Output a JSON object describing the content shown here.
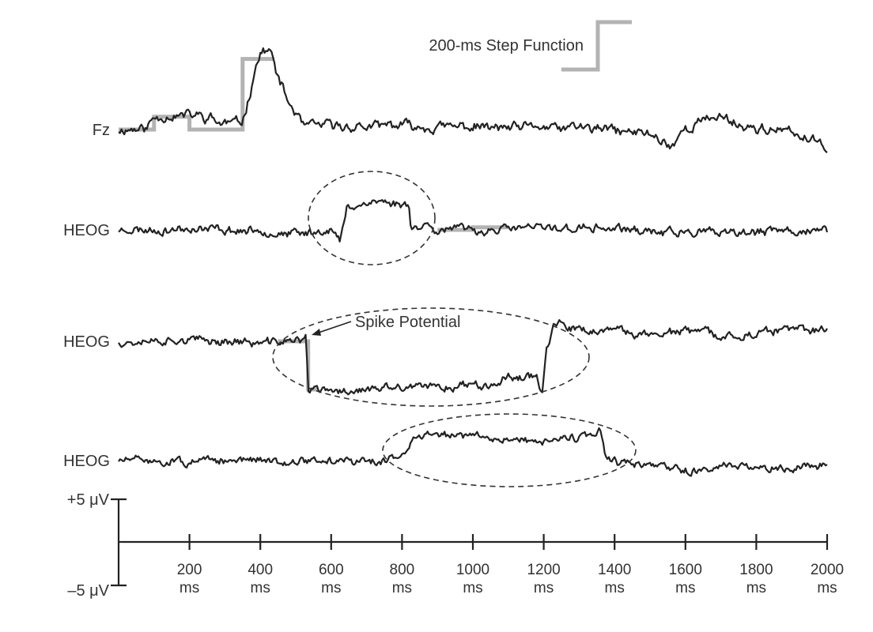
{
  "chart_data": {
    "type": "line",
    "x_unit": "ms",
    "xlim": [
      0,
      2000
    ],
    "x_ticks": [
      {
        "value": 200,
        "label": "200",
        "unit": "ms"
      },
      {
        "value": 400,
        "label": "400",
        "unit": "ms"
      },
      {
        "value": 600,
        "label": "600",
        "unit": "ms"
      },
      {
        "value": 800,
        "label": "800",
        "unit": "ms"
      },
      {
        "value": 1000,
        "label": "1000",
        "unit": "ms"
      },
      {
        "value": 1200,
        "label": "1200",
        "unit": "ms"
      },
      {
        "value": 1400,
        "label": "1400",
        "unit": "ms"
      },
      {
        "value": 1600,
        "label": "1600",
        "unit": "ms"
      },
      {
        "value": 1800,
        "label": "1800",
        "unit": "ms"
      },
      {
        "value": 2000,
        "label": "2000",
        "unit": "ms"
      }
    ],
    "y_scale": {
      "top_label": "+5 μV",
      "bottom_label": "–5 μV",
      "ylim": [
        -5,
        5
      ]
    },
    "step_legend_label": "200-ms Step Function",
    "annotation": {
      "text": "Spike Potential",
      "x": 530
    },
    "series": [
      {
        "name": "Fz",
        "line_color": "#222222",
        "step_color": "#b3b3b3",
        "noise_amp": 0.7,
        "seed": 11,
        "baseline_key": [
          [
            0,
            0
          ],
          [
            80,
            0.3
          ],
          [
            100,
            1.5
          ],
          [
            200,
            1.8
          ],
          [
            260,
            1.5
          ],
          [
            290,
            0.8
          ],
          [
            350,
            1.0
          ],
          [
            370,
            4.0
          ],
          [
            385,
            7.5
          ],
          [
            410,
            9.5
          ],
          [
            430,
            9.0
          ],
          [
            450,
            6.0
          ],
          [
            480,
            3.0
          ],
          [
            520,
            0.5
          ],
          [
            700,
            0.3
          ],
          [
            900,
            0.5
          ],
          [
            1100,
            0.0
          ],
          [
            1300,
            0.2
          ],
          [
            1500,
            -0.5
          ],
          [
            1560,
            -2.0
          ],
          [
            1600,
            0.0
          ],
          [
            1640,
            1.0
          ],
          [
            1700,
            1.5
          ],
          [
            1760,
            0.5
          ],
          [
            1900,
            -0.5
          ],
          [
            2000,
            -1.8
          ]
        ],
        "step": [
          [
            0,
            0
          ],
          [
            100,
            0
          ],
          [
            100,
            1.5
          ],
          [
            200,
            1.5
          ],
          [
            200,
            0
          ],
          [
            350,
            0
          ],
          [
            350,
            8.2
          ],
          [
            440,
            8.2
          ]
        ]
      },
      {
        "name": "HEOG",
        "line_color": "#222222",
        "step_color": "#b3b3b3",
        "noise_amp": 0.6,
        "seed": 23,
        "baseline_key": [
          [
            0,
            0
          ],
          [
            200,
            0
          ],
          [
            500,
            -0.3
          ],
          [
            600,
            0
          ],
          [
            625,
            -1.5
          ],
          [
            645,
            2.6
          ],
          [
            700,
            3.3
          ],
          [
            800,
            3.0
          ],
          [
            822,
            3.2
          ],
          [
            825,
            0.3
          ],
          [
            880,
            0.7
          ],
          [
            900,
            0
          ],
          [
            1200,
            0.2
          ],
          [
            1500,
            0
          ],
          [
            1700,
            -0.5
          ],
          [
            2000,
            0
          ]
        ],
        "step": [
          [
            900,
            0
          ],
          [
            1000,
            0
          ],
          [
            1000,
            0.3
          ],
          [
            1100,
            0.3
          ]
        ]
      },
      {
        "name": "HEOG",
        "line_color": "#222222",
        "step_color": "#b3b3b3",
        "noise_amp": 0.6,
        "seed": 37,
        "baseline_key": [
          [
            0,
            0
          ],
          [
            300,
            0
          ],
          [
            400,
            -0.2
          ],
          [
            500,
            0.1
          ],
          [
            520,
            0.2
          ],
          [
            530,
            1.5
          ],
          [
            534,
            -5.5
          ],
          [
            600,
            -5.8
          ],
          [
            800,
            -5.6
          ],
          [
            1000,
            -5.0
          ],
          [
            1180,
            -3.8
          ],
          [
            1195,
            -6.0
          ],
          [
            1208,
            -1.0
          ],
          [
            1230,
            1.8
          ],
          [
            1300,
            1.0
          ],
          [
            1500,
            1.0
          ],
          [
            1650,
            1.2
          ],
          [
            1700,
            0.5
          ],
          [
            2000,
            1.4
          ]
        ],
        "step": [
          [
            450,
            0
          ],
          [
            535,
            0
          ],
          [
            535,
            -5.6
          ],
          [
            560,
            -5.6
          ]
        ]
      },
      {
        "name": "HEOG",
        "line_color": "#222222",
        "step_color": "#b3b3b3",
        "noise_amp": 0.55,
        "seed": 51,
        "baseline_key": [
          [
            0,
            0
          ],
          [
            500,
            0
          ],
          [
            740,
            0
          ],
          [
            790,
            0.5
          ],
          [
            820,
            2.0
          ],
          [
            850,
            3.0
          ],
          [
            1000,
            2.8
          ],
          [
            1200,
            2.3
          ],
          [
            1350,
            2.8
          ],
          [
            1362,
            3.5
          ],
          [
            1375,
            0.2
          ],
          [
            1400,
            -0.3
          ],
          [
            1600,
            -1.2
          ],
          [
            2000,
            -0.5
          ]
        ],
        "step": []
      }
    ]
  }
}
